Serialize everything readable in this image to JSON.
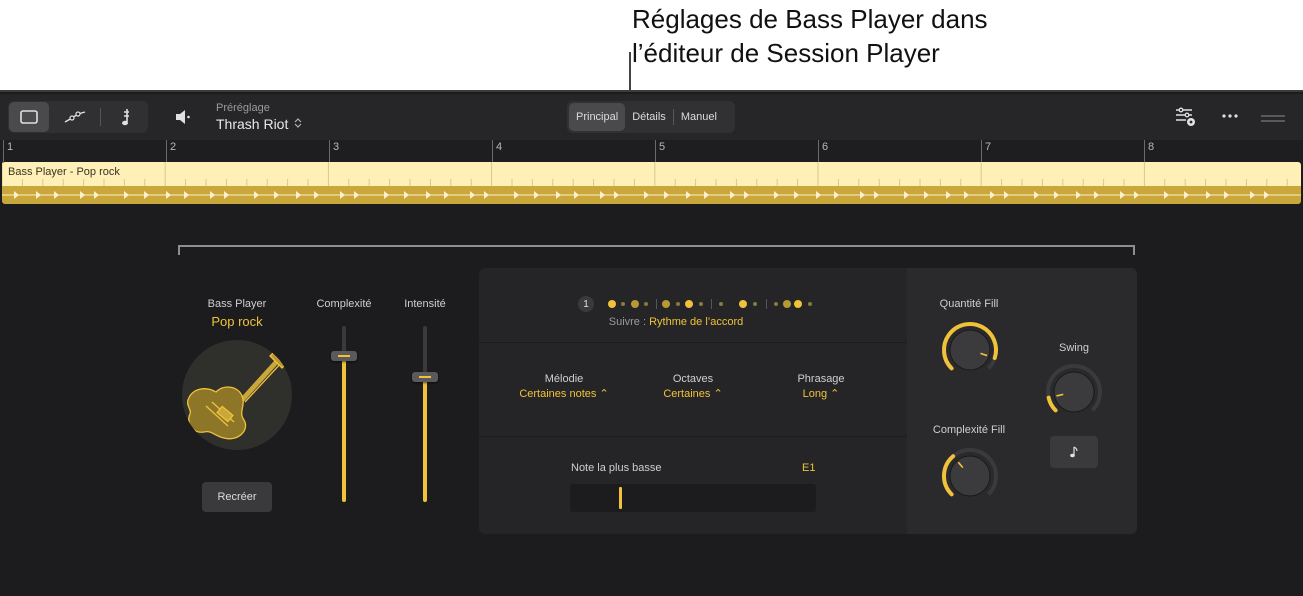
{
  "callout": {
    "line1": "Réglages de Bass Player dans",
    "line2": "l’éditeur de Session Player"
  },
  "toolbar": {
    "view_icons": [
      "window-icon",
      "automation-curve-icon",
      "score-icon"
    ],
    "speaker_icon": "speaker-icon",
    "preset_label": "Préréglage",
    "preset_value": "Thrash Riot",
    "tabs": [
      {
        "label": "Principal",
        "active": true
      },
      {
        "label": "Détails",
        "active": false
      },
      {
        "label": "Manuel",
        "active": false
      }
    ],
    "right_icons": [
      "mixer-settings-icon",
      "more-icon",
      "resize-handle-icon"
    ]
  },
  "ruler": {
    "bars": [
      "1",
      "2",
      "3",
      "4",
      "5",
      "6",
      "7",
      "8"
    ]
  },
  "region": {
    "label": "Bass Player - Pop rock",
    "color": "#fff0b8",
    "lane_color": "#c9a73a"
  },
  "player": {
    "title": "Bass Player",
    "style": "Pop rock",
    "avatar_icon": "bass-guitar-icon",
    "recreate_label": "Recréer"
  },
  "sliders": [
    {
      "label": "Complexité",
      "value": 0.83
    },
    {
      "label": "Intensité",
      "value": 0.71
    }
  ],
  "pattern": {
    "selected": "1",
    "follow_prefix": "Suivre :",
    "follow_value": "Rythme de l’accord"
  },
  "options": [
    {
      "label": "Mélodie",
      "value": "Certaines notes"
    },
    {
      "label": "Octaves",
      "value": "Certaines"
    },
    {
      "label": "Phrasage",
      "value": "Long"
    }
  ],
  "lowest_note": {
    "label": "Note la plus basse",
    "value": "E1",
    "position": 0.2
  },
  "knobs": [
    {
      "label": "Quantité Fill",
      "value": 0.9
    },
    {
      "label": "Complexité Fill",
      "value": 0.35
    },
    {
      "label": "Swing",
      "value": 0.12
    }
  ],
  "note_button_icon": "eighth-note-icon",
  "accent_color": "#f0c23a"
}
